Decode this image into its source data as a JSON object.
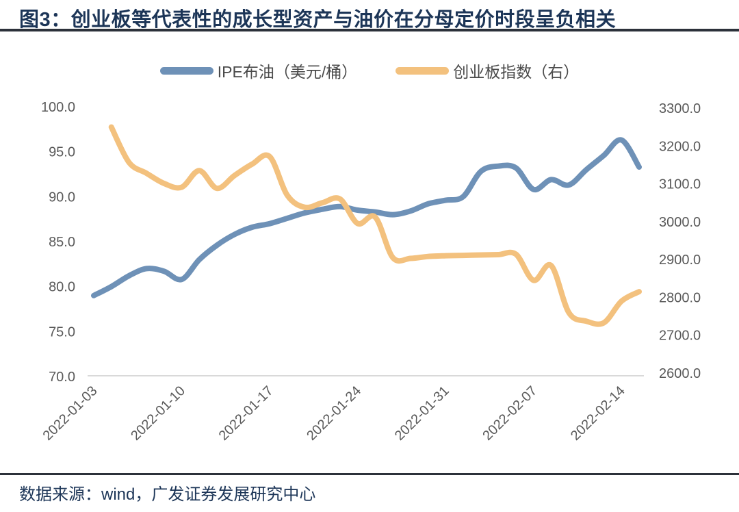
{
  "title": "图3：创业板等代表性的成长型资产与油价在分母定价时段呈负相关",
  "source": "数据来源：wind，广发证券发展研究中心",
  "legend": [
    {
      "label": "IPE布油（美元/桶）",
      "color": "#6e91b7"
    },
    {
      "label": "创业板指数（右）",
      "color": "#f3c17e"
    }
  ],
  "colors": {
    "title_text": "#1c3557",
    "axis_text": "#595959",
    "axis_line": "#d9d9d9",
    "divider": "#2c313a",
    "brent_line": "#6e91b7",
    "chinext_line": "#f3c17e",
    "background": "#ffffff"
  },
  "chart_data": {
    "type": "line",
    "title": "图3：创业板等代表性的成长型资产与油价在分母定价时段呈负相关",
    "grid": false,
    "legend_position": "top",
    "categories": [
      "2022-01-03",
      "2022-01-04",
      "2022-01-05",
      "2022-01-06",
      "2022-01-07",
      "2022-01-10",
      "2022-01-11",
      "2022-01-12",
      "2022-01-13",
      "2022-01-14",
      "2022-01-17",
      "2022-01-18",
      "2022-01-19",
      "2022-01-20",
      "2022-01-21",
      "2022-01-24",
      "2022-01-25",
      "2022-01-26",
      "2022-01-27",
      "2022-01-28",
      "2022-01-31",
      "2022-02-01",
      "2022-02-02",
      "2022-02-03",
      "2022-02-04",
      "2022-02-07",
      "2022-02-08",
      "2022-02-09",
      "2022-02-10",
      "2022-02-11",
      "2022-02-14",
      "2022-02-15"
    ],
    "series": [
      {
        "name": "IPE布油（美元/桶）",
        "axis": "left",
        "color": "#6e91b7",
        "values": [
          79.0,
          80.0,
          81.2,
          82.0,
          81.7,
          80.8,
          83.0,
          84.6,
          85.8,
          86.6,
          87.0,
          87.6,
          88.2,
          88.6,
          88.9,
          88.5,
          88.3,
          88.0,
          88.4,
          89.2,
          89.6,
          90.0,
          92.8,
          93.4,
          93.2,
          90.8,
          91.9,
          91.3,
          93.0,
          94.6,
          96.3,
          93.3
        ]
      },
      {
        "name": "创业板指数（右）",
        "axis": "right",
        "color": "#f3c17e",
        "values": [
          null,
          3250,
          3157,
          3128,
          3101,
          3091,
          3135,
          3088,
          3122,
          3152,
          3172,
          3070,
          3038,
          3050,
          3060,
          2995,
          3012,
          2905,
          2903,
          2908,
          2910,
          2911,
          2912,
          2913,
          2914,
          2845,
          2884,
          2760,
          2737,
          2733,
          2790,
          2815
        ]
      }
    ],
    "left_axis": {
      "min": 70,
      "max": 100,
      "ticks": [
        "100.0",
        "95.0",
        "90.0",
        "85.0",
        "80.0",
        "75.0",
        "70.0"
      ]
    },
    "right_axis": {
      "min": 2600,
      "max": 3300,
      "ticks": [
        "3300.0",
        "3200.0",
        "3100.0",
        "3000.0",
        "2900.0",
        "2800.0",
        "2700.0",
        "2600.0"
      ]
    },
    "x_tick_labels": [
      "2022-01-03",
      "2022-01-10",
      "2022-01-17",
      "2022-01-24",
      "2022-01-31",
      "2022-02-07",
      "2022-02-14"
    ],
    "x_tick_indices": [
      0,
      5,
      10,
      15,
      20,
      25,
      30
    ]
  }
}
